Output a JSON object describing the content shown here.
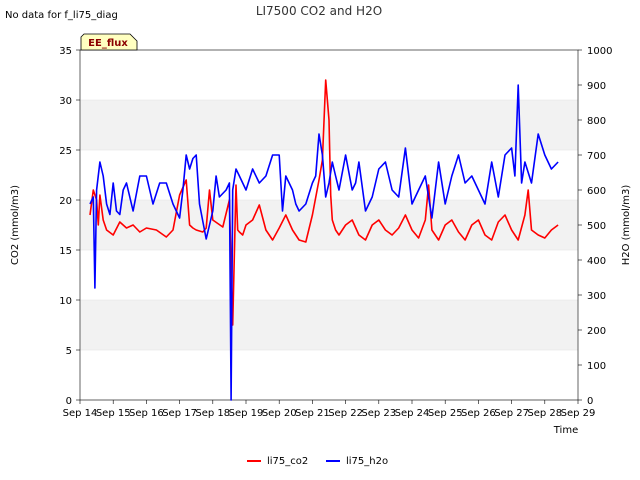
{
  "chart_data": {
    "type": "line",
    "title": "LI7500 CO2 and H2O",
    "no_data_note": "No data for f_li75_diag",
    "badge": "EE_flux",
    "xlabel": "Time",
    "ylabel_left": "CO2 (mmol/m3)",
    "ylabel_right": "H2O (mmol/m3)",
    "ylim_left": [
      0,
      35
    ],
    "ylim_right": [
      0,
      1000
    ],
    "xlim": [
      14,
      29
    ],
    "x_ticks": [
      "Sep 14",
      "Sep 15",
      "Sep 16",
      "Sep 17",
      "Sep 18",
      "Sep 19",
      "Sep 20",
      "Sep 21",
      "Sep 22",
      "Sep 23",
      "Sep 24",
      "Sep 25",
      "Sep 26",
      "Sep 27",
      "Sep 28",
      "Sep 29"
    ],
    "y_ticks_left": [
      "0",
      "5",
      "10",
      "15",
      "20",
      "25",
      "30",
      "35"
    ],
    "y_ticks_right": [
      "0",
      "100",
      "200",
      "300",
      "400",
      "500",
      "600",
      "700",
      "800",
      "900",
      "1000"
    ],
    "grid_bands": "alternating horizontal bands",
    "legend_position": "bottom-center",
    "series": [
      {
        "name": "li75_co2",
        "axis": "left",
        "color": "#ff0000",
        "x": [
          14.3,
          14.4,
          14.5,
          14.55,
          14.6,
          14.7,
          14.8,
          15.0,
          15.2,
          15.4,
          15.6,
          15.8,
          16.0,
          16.3,
          16.6,
          16.8,
          17.0,
          17.2,
          17.3,
          17.4,
          17.5,
          17.7,
          17.8,
          17.9,
          18.0,
          18.3,
          18.5,
          18.6,
          18.7,
          18.75,
          18.8,
          18.9,
          19.0,
          19.2,
          19.4,
          19.6,
          19.8,
          20.0,
          20.2,
          20.4,
          20.6,
          20.8,
          21.0,
          21.2,
          21.3,
          21.4,
          21.5,
          21.55,
          21.6,
          21.7,
          21.8,
          22.0,
          22.2,
          22.4,
          22.6,
          22.8,
          23.0,
          23.2,
          23.4,
          23.6,
          23.8,
          24.0,
          24.2,
          24.4,
          24.5,
          24.6,
          24.8,
          25.0,
          25.2,
          25.4,
          25.6,
          25.8,
          26.0,
          26.2,
          26.4,
          26.6,
          26.8,
          27.0,
          27.2,
          27.4,
          27.5,
          27.6,
          27.8,
          28.0,
          28.2,
          28.4
        ],
        "values": [
          18.5,
          21.0,
          20.0,
          17.5,
          20.5,
          18.0,
          17.0,
          16.5,
          17.8,
          17.2,
          17.5,
          16.8,
          17.2,
          17.0,
          16.3,
          17.0,
          20.5,
          22.0,
          17.5,
          17.2,
          17.0,
          16.8,
          17.2,
          21.0,
          18.0,
          17.3,
          20.0,
          7.5,
          21.5,
          17.0,
          16.8,
          16.5,
          17.5,
          18.0,
          19.5,
          17.0,
          16.0,
          17.2,
          18.5,
          17.0,
          16.0,
          15.8,
          18.5,
          22.0,
          24.0,
          32.0,
          28.0,
          20.5,
          18.0,
          17.0,
          16.5,
          17.5,
          18.0,
          16.5,
          16.0,
          17.5,
          18.0,
          17.0,
          16.5,
          17.2,
          18.5,
          17.0,
          16.2,
          18.0,
          21.5,
          17.0,
          16.0,
          17.5,
          18.0,
          16.8,
          16.0,
          17.5,
          18.0,
          16.5,
          16.0,
          17.8,
          18.5,
          17.0,
          16.0,
          18.5,
          21.0,
          17.0,
          16.5,
          16.2,
          17.0,
          17.5
        ]
      },
      {
        "name": "li75_h2o",
        "axis": "right",
        "color": "#0000ff",
        "x": [
          14.3,
          14.4,
          14.45,
          14.5,
          14.6,
          14.7,
          14.8,
          14.9,
          15.0,
          15.1,
          15.2,
          15.3,
          15.4,
          15.6,
          15.8,
          16.0,
          16.2,
          16.4,
          16.6,
          16.8,
          17.0,
          17.1,
          17.2,
          17.3,
          17.4,
          17.5,
          17.6,
          17.8,
          18.0,
          18.1,
          18.2,
          18.4,
          18.5,
          18.55,
          18.6,
          18.7,
          18.8,
          19.0,
          19.2,
          19.4,
          19.6,
          19.8,
          20.0,
          20.1,
          20.2,
          20.4,
          20.5,
          20.6,
          20.8,
          21.0,
          21.1,
          21.2,
          21.3,
          21.4,
          21.5,
          21.6,
          21.7,
          21.8,
          22.0,
          22.2,
          22.3,
          22.4,
          22.6,
          22.8,
          23.0,
          23.2,
          23.4,
          23.6,
          23.8,
          24.0,
          24.2,
          24.4,
          24.6,
          24.8,
          25.0,
          25.2,
          25.4,
          25.6,
          25.8,
          26.0,
          26.2,
          26.4,
          26.6,
          26.8,
          27.0,
          27.1,
          27.2,
          27.3,
          27.4,
          27.6,
          27.8,
          28.0,
          28.2,
          28.4
        ],
        "values": [
          560,
          580,
          320,
          600,
          680,
          640,
          560,
          530,
          620,
          540,
          530,
          600,
          620,
          540,
          640,
          640,
          560,
          620,
          620,
          560,
          520,
          600,
          700,
          660,
          690,
          700,
          560,
          460,
          540,
          640,
          580,
          600,
          620,
          0,
          600,
          660,
          640,
          600,
          660,
          620,
          640,
          700,
          700,
          540,
          640,
          600,
          560,
          540,
          560,
          620,
          640,
          760,
          700,
          580,
          620,
          680,
          640,
          600,
          700,
          600,
          620,
          680,
          540,
          580,
          660,
          680,
          600,
          580,
          720,
          560,
          600,
          640,
          520,
          680,
          560,
          640,
          700,
          620,
          640,
          600,
          560,
          680,
          580,
          700,
          720,
          640,
          900,
          620,
          680,
          620,
          760,
          700,
          660,
          680
        ]
      }
    ]
  }
}
